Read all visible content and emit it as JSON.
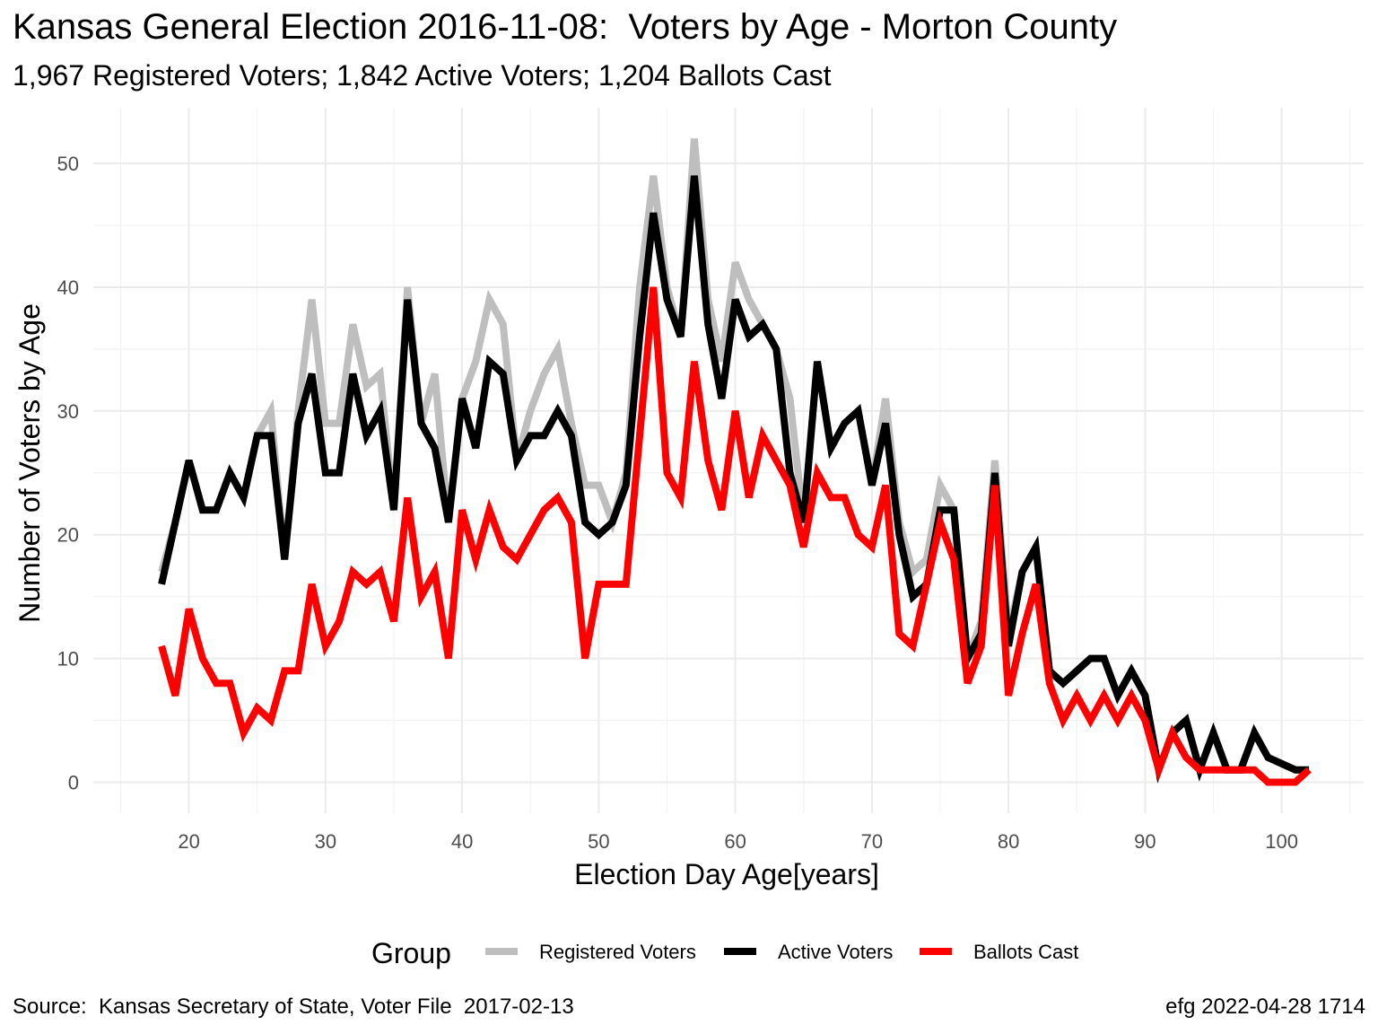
{
  "title": "Kansas General Election 2016-11-08:  Voters by Age - Morton County",
  "subtitle": "1,967 Registered Voters; 1,842 Active Voters; 1,204 Ballots Cast",
  "caption_left": "Source:  Kansas Secretary of State, Voter File  2017-02-13",
  "caption_right": "efg 2022-04-28 1714",
  "chart_data": {
    "type": "line",
    "xlabel": "Election Day Age[years]",
    "ylabel": "Number of Voters by Age",
    "xlim": [
      13,
      106
    ],
    "ylim": [
      -2.5,
      54.5
    ],
    "x_ticks": [
      20,
      30,
      40,
      50,
      60,
      70,
      80,
      90,
      100
    ],
    "y_ticks": [
      0,
      10,
      20,
      30,
      40,
      50
    ],
    "grid": true,
    "legend": {
      "title": "Group",
      "position": "bottom",
      "entries": [
        "Registered Voters",
        "Active Voters",
        "Ballots Cast"
      ]
    },
    "x": [
      18,
      19,
      20,
      21,
      22,
      23,
      24,
      25,
      26,
      27,
      28,
      29,
      30,
      31,
      32,
      33,
      34,
      35,
      36,
      37,
      38,
      39,
      40,
      41,
      42,
      43,
      44,
      45,
      46,
      47,
      48,
      49,
      50,
      51,
      52,
      53,
      54,
      55,
      56,
      57,
      58,
      59,
      60,
      61,
      62,
      63,
      64,
      65,
      66,
      67,
      68,
      69,
      70,
      71,
      72,
      73,
      74,
      75,
      76,
      77,
      78,
      79,
      80,
      81,
      82,
      83,
      84,
      85,
      86,
      87,
      88,
      89,
      90,
      91,
      92,
      93,
      94,
      95,
      96,
      97,
      98,
      99,
      100,
      101,
      102
    ],
    "series": [
      {
        "name": "Registered Voters",
        "color": "#bebebe",
        "values": [
          17,
          21,
          26,
          22,
          22,
          25,
          23,
          28,
          30,
          18,
          30,
          39,
          29,
          29,
          37,
          32,
          33,
          22,
          40,
          29,
          33,
          21,
          31,
          34,
          39,
          37,
          26,
          30,
          33,
          35,
          29,
          24,
          24,
          21,
          25,
          40,
          49,
          40,
          36,
          52,
          39,
          34,
          42,
          39,
          37,
          35,
          31,
          21,
          34,
          27,
          29,
          30,
          24,
          31,
          21,
          17,
          18,
          24,
          22,
          10,
          13,
          26,
          12,
          17,
          19,
          9,
          8,
          9,
          10,
          10,
          7,
          9,
          7,
          1,
          4,
          5,
          1,
          4,
          1,
          1,
          4,
          2,
          1.5,
          1,
          1
        ]
      },
      {
        "name": "Active Voters",
        "color": "#000000",
        "values": [
          16,
          21,
          26,
          22,
          22,
          25,
          23,
          28,
          28,
          18,
          29,
          33,
          25,
          25,
          33,
          28,
          30,
          22,
          39,
          29,
          27,
          21,
          31,
          27,
          34,
          33,
          26,
          28,
          28,
          30,
          28,
          21,
          20,
          21,
          24,
          36,
          46,
          39,
          36,
          49,
          37,
          31,
          39,
          36,
          37,
          35,
          25,
          21,
          34,
          27,
          29,
          30,
          24,
          29,
          20,
          15,
          16,
          22,
          22,
          10,
          12,
          25,
          11,
          17,
          19,
          9,
          8,
          9,
          10,
          10,
          7,
          9,
          7,
          1,
          4,
          5,
          1,
          4,
          1,
          1,
          4,
          2,
          1.5,
          1,
          1
        ]
      },
      {
        "name": "Ballots Cast",
        "color": "#ff0000",
        "values": [
          11,
          7,
          14,
          10,
          8,
          8,
          4,
          6,
          5,
          9,
          9,
          16,
          11,
          13,
          17,
          16,
          17,
          13,
          23,
          15,
          17,
          10,
          22,
          18,
          22,
          19,
          18,
          20,
          22,
          23,
          21,
          10,
          16,
          16,
          16,
          28,
          40,
          25,
          23,
          34,
          26,
          22,
          30,
          23,
          28,
          26,
          24,
          19,
          25,
          23,
          23,
          20,
          19,
          24,
          12,
          11,
          16,
          21,
          18,
          8,
          11,
          24,
          7,
          12,
          16,
          8,
          5,
          7,
          5,
          7,
          5,
          7,
          5,
          1,
          4,
          2,
          1,
          1,
          1,
          1,
          1,
          0,
          0,
          0,
          1
        ]
      }
    ]
  }
}
